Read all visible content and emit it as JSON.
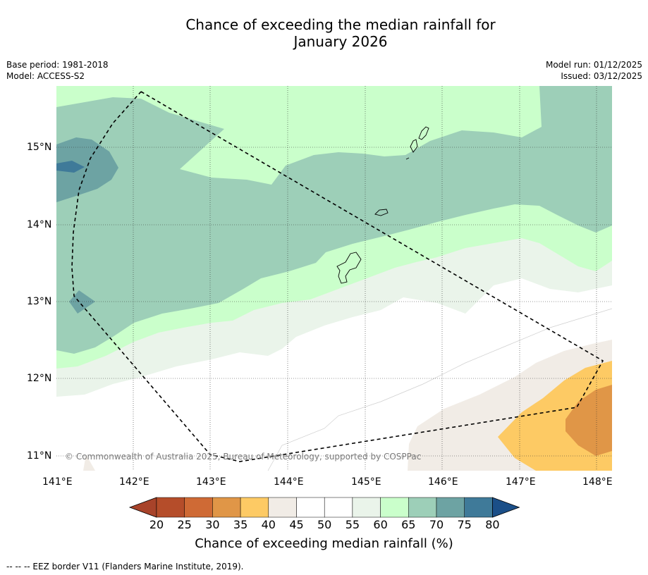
{
  "title": {
    "line1": "Chance of exceeding the median rainfall for",
    "line2": "January 2026"
  },
  "meta": {
    "base_period": "Base period: 1981-2018",
    "model": "Model: ACCESS-S2",
    "model_run": "Model run: 01/12/2025",
    "issued": "Issued: 03/12/2025"
  },
  "axes": {
    "lat_ticks": [
      "15°N",
      "14°N",
      "13°N",
      "12°N",
      "11°N"
    ],
    "lon_ticks": [
      "141°E",
      "142°E",
      "143°E",
      "144°E",
      "145°E",
      "146°E",
      "147°E",
      "148°E"
    ]
  },
  "copyright": "© Commonwealth of Australia 2025, Bureau of Meteorology, supported by COSPPac",
  "colorbar": {
    "labels": [
      "20",
      "25",
      "30",
      "35",
      "40",
      "45",
      "50",
      "55",
      "60",
      "65",
      "70",
      "75",
      "80"
    ],
    "colors": [
      "#a8432a",
      "#b54d2a",
      "#cf6a35",
      "#e09647",
      "#fdca64",
      "#f1ece6",
      "#ffffff",
      "#ffffff",
      "#eaf4ea",
      "#caffcb",
      "#9dcfb8",
      "#6da3a3",
      "#3f7a99",
      "#1b4f88"
    ],
    "title": "Chance of exceeding median rainfall (%)"
  },
  "map_colors": {
    "c45": "#f1ece6",
    "c55": "#eaf4ea",
    "c60": "#caffcb",
    "c65": "#9dcfb8",
    "c70": "#6da3a3",
    "c75": "#3f7a99",
    "c35": "#fdca64",
    "c30": "#e09647"
  },
  "footnote": "--  --  -- EEZ border V11 (Flanders Marine Institute, 2019)."
}
